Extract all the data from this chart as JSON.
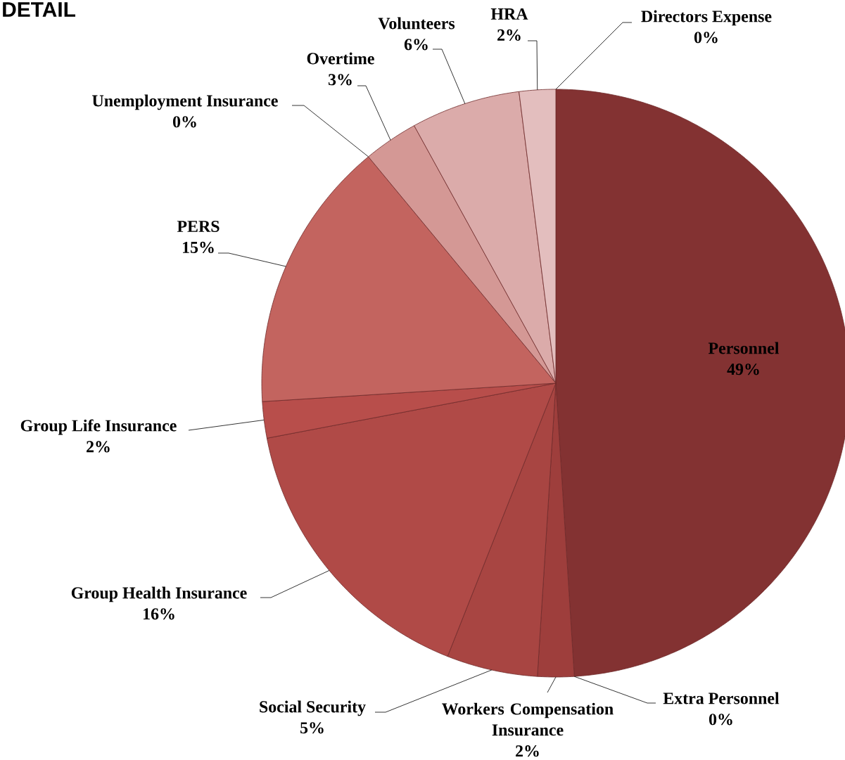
{
  "chart_data": {
    "type": "pie",
    "title": "DETAIL",
    "categories": [
      "Personnel",
      "Extra Personnel",
      "Workers Compensation Insurance",
      "Social Security",
      "Group Health Insurance",
      "Group Life Insurance",
      "PERS",
      "Unemployment Insurance",
      "Overtime",
      "Volunteers",
      "HRA",
      "Directors Expense"
    ],
    "values": [
      49,
      0,
      2,
      5,
      16,
      2,
      15,
      0,
      3,
      6,
      2,
      0
    ],
    "value_labels": [
      "49%",
      "0%",
      "2%",
      "5%",
      "16%",
      "2%",
      "15%",
      "0%",
      "3%",
      "6%",
      "2%",
      "0%"
    ],
    "colors": [
      "#833232",
      "#8b3535",
      "#9e3e3c",
      "#a84542",
      "#b04a47",
      "#b84e4b",
      "#c3645f",
      "#c87a76",
      "#d49895",
      "#dbabaa",
      "#e3bebe",
      "#e8cccc"
    ]
  }
}
